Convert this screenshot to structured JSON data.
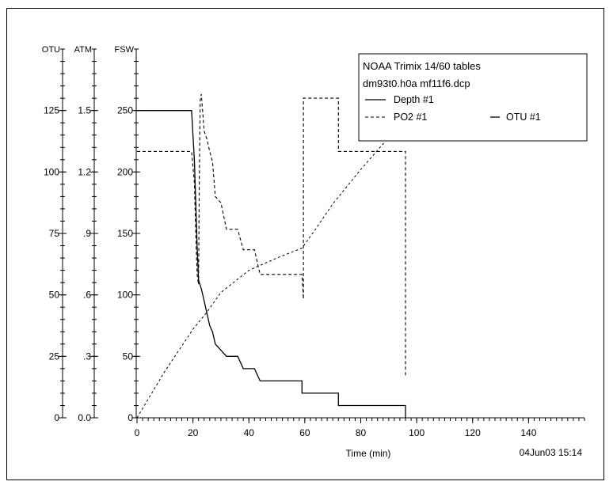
{
  "chart_data": {
    "type": "line",
    "axes": {
      "otu": {
        "label": "OTU",
        "ticks": [
          0,
          25,
          50,
          75,
          100,
          125
        ],
        "range": [
          0,
          150
        ]
      },
      "atm": {
        "label": "ATM",
        "ticks": [
          "0.0",
          ".3",
          ".6",
          ".9",
          "1.2",
          "1.5"
        ],
        "range": [
          0,
          1.8
        ]
      },
      "fsw": {
        "label": "FSW",
        "ticks": [
          0,
          50,
          100,
          150,
          200,
          250
        ],
        "range": [
          0,
          300
        ]
      },
      "x": {
        "label": "Time (min)",
        "ticks": [
          0,
          20,
          40,
          60,
          80,
          100,
          120,
          140
        ],
        "range": [
          0,
          160
        ]
      }
    },
    "legend": {
      "title_line1": "NOAA Trimix 14/60 tables",
      "title_line2": "dm93t0.h0a mf11f6.dcp",
      "entries": [
        {
          "symbol": "——",
          "label": "Depth  #1"
        },
        {
          "symbol": "- - -",
          "label": "PO2     #1"
        },
        {
          "symbol": "—",
          "label": "OTU     #1"
        }
      ]
    },
    "timestamp": "04Jun03 15:14",
    "series": [
      {
        "name": "Depth  #1",
        "axis": "fsw",
        "style": "solid",
        "points": [
          [
            0,
            250
          ],
          [
            19.5,
            250
          ],
          [
            20.5,
            210
          ],
          [
            21,
            175
          ],
          [
            21.5,
            140
          ],
          [
            22,
            112
          ],
          [
            23,
            105
          ],
          [
            24,
            95
          ],
          [
            25,
            85
          ],
          [
            26,
            75
          ],
          [
            27,
            70
          ],
          [
            28,
            60
          ],
          [
            30,
            55
          ],
          [
            32,
            50
          ],
          [
            36,
            50
          ],
          [
            38,
            40
          ],
          [
            42,
            40
          ],
          [
            44,
            30
          ],
          [
            59,
            30
          ],
          [
            59,
            20
          ],
          [
            72,
            20
          ],
          [
            72,
            10
          ],
          [
            96,
            10
          ],
          [
            96,
            0
          ]
        ]
      },
      {
        "name": "PO2     #1",
        "axis": "atm",
        "style": "dashed",
        "points": [
          [
            0,
            1.3
          ],
          [
            19.5,
            1.3
          ],
          [
            20.5,
            1.15
          ],
          [
            21,
            0.9
          ],
          [
            21.5,
            0.7
          ],
          [
            22,
            0.65
          ],
          [
            22.3,
            1.18
          ],
          [
            22.6,
            1.55
          ],
          [
            23,
            1.58
          ],
          [
            24,
            1.4
          ],
          [
            25,
            1.36
          ],
          [
            26,
            1.3
          ],
          [
            27,
            1.25
          ],
          [
            28,
            1.08
          ],
          [
            30,
            1.05
          ],
          [
            32,
            0.92
          ],
          [
            36,
            0.92
          ],
          [
            38,
            0.82
          ],
          [
            42,
            0.82
          ],
          [
            44,
            0.7
          ],
          [
            59,
            0.7
          ],
          [
            59.5,
            0.58
          ],
          [
            59.5,
            1.56
          ],
          [
            72,
            1.56
          ],
          [
            72,
            1.3
          ],
          [
            96,
            1.3
          ],
          [
            96,
            0.2
          ]
        ]
      },
      {
        "name": "OTU     #1",
        "axis": "otu",
        "style": "dashed-fine",
        "points": [
          [
            0,
            0
          ],
          [
            10,
            19
          ],
          [
            20,
            36
          ],
          [
            25,
            43
          ],
          [
            30,
            51
          ],
          [
            40,
            60
          ],
          [
            50,
            65
          ],
          [
            59,
            69
          ],
          [
            64,
            77
          ],
          [
            70,
            87
          ],
          [
            80,
            101
          ],
          [
            90,
            114
          ],
          [
            96,
            122
          ]
        ]
      }
    ]
  }
}
